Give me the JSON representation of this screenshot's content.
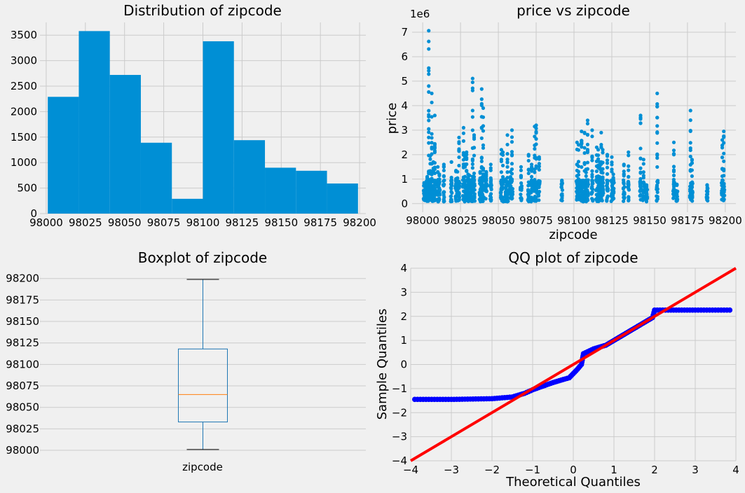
{
  "chart_data": [
    {
      "type": "bar",
      "title": "Distribution of zipcode",
      "xlabel": "",
      "ylabel": "",
      "bin_edges": [
        98001,
        98020.8,
        98040.6,
        98060.4,
        98080.2,
        98100,
        98119.8,
        98139.6,
        98159.4,
        98179.2,
        98199
      ],
      "values": [
        2290,
        3580,
        2720,
        1390,
        290,
        3380,
        1440,
        900,
        840,
        590
      ],
      "xlim": [
        97996,
        98204
      ],
      "ylim": [
        0,
        3750
      ],
      "xticks": [
        98000,
        98025,
        98050,
        98075,
        98100,
        98125,
        98150,
        98175,
        98200
      ],
      "yticks": [
        0,
        500,
        1000,
        1500,
        2000,
        2500,
        3000,
        3500
      ],
      "color": "#008fd5",
      "grid": true
    },
    {
      "type": "scatter",
      "title": "price vs zipcode",
      "xlabel": "zipcode",
      "ylabel": "price",
      "y_scale_label": "1e6",
      "xlim": [
        97993,
        98207
      ],
      "ylim": [
        -0.35,
        7.4
      ],
      "xticks": [
        98000,
        98025,
        98050,
        98075,
        98100,
        98125,
        98150,
        98175,
        98200
      ],
      "yticks": [
        0,
        1,
        2,
        3,
        4,
        5,
        6,
        7
      ],
      "color": "#008fd5",
      "grid": true,
      "zip_groups": [
        {
          "zip": 98001,
          "max": 0.85
        },
        {
          "zip": 98002,
          "max": 0.75
        },
        {
          "zip": 98003,
          "max": 1.1
        },
        {
          "zip": 98004,
          "max": 7.06
        },
        {
          "zip": 98005,
          "max": 1.95
        },
        {
          "zip": 98006,
          "max": 4.5
        },
        {
          "zip": 98007,
          "max": 1.7
        },
        {
          "zip": 98008,
          "max": 3.6
        },
        {
          "zip": 98010,
          "max": 1.5
        },
        {
          "zip": 98011,
          "max": 1.2
        },
        {
          "zip": 98014,
          "max": 1.6
        },
        {
          "zip": 98019,
          "max": 1.7
        },
        {
          "zip": 98022,
          "max": 1.35
        },
        {
          "zip": 98023,
          "max": 1.3
        },
        {
          "zip": 98024,
          "max": 2.7
        },
        {
          "zip": 98027,
          "max": 3.1
        },
        {
          "zip": 98028,
          "max": 1.9
        },
        {
          "zip": 98029,
          "max": 2.1
        },
        {
          "zip": 98030,
          "max": 1.2
        },
        {
          "zip": 98031,
          "max": 1.15
        },
        {
          "zip": 98032,
          "max": 0.95
        },
        {
          "zip": 98033,
          "max": 5.11
        },
        {
          "zip": 98034,
          "max": 2.8
        },
        {
          "zip": 98038,
          "max": 1.3
        },
        {
          "zip": 98039,
          "max": 4.68
        },
        {
          "zip": 98040,
          "max": 3.9
        },
        {
          "zip": 98042,
          "max": 1.3
        },
        {
          "zip": 98045,
          "max": 1.6
        },
        {
          "zip": 98052,
          "max": 2.2
        },
        {
          "zip": 98053,
          "max": 2.1
        },
        {
          "zip": 98055,
          "max": 1.0
        },
        {
          "zip": 98056,
          "max": 2.8
        },
        {
          "zip": 98058,
          "max": 1.3
        },
        {
          "zip": 98059,
          "max": 3.0
        },
        {
          "zip": 98065,
          "max": 1.5
        },
        {
          "zip": 98070,
          "max": 2.0
        },
        {
          "zip": 98072,
          "max": 1.6
        },
        {
          "zip": 98074,
          "max": 3.15
        },
        {
          "zip": 98075,
          "max": 3.2
        },
        {
          "zip": 98077,
          "max": 1.9
        },
        {
          "zip": 98092,
          "max": 0.95
        },
        {
          "zip": 98102,
          "max": 2.5
        },
        {
          "zip": 98103,
          "max": 2.4
        },
        {
          "zip": 98105,
          "max": 2.95
        },
        {
          "zip": 98106,
          "max": 0.95
        },
        {
          "zip": 98107,
          "max": 2.9
        },
        {
          "zip": 98108,
          "max": 1.4
        },
        {
          "zip": 98109,
          "max": 3.4
        },
        {
          "zip": 98112,
          "max": 3.0
        },
        {
          "zip": 98115,
          "max": 2.3
        },
        {
          "zip": 98116,
          "max": 2.2
        },
        {
          "zip": 98117,
          "max": 1.7
        },
        {
          "zip": 98118,
          "max": 2.9
        },
        {
          "zip": 98119,
          "max": 2.2
        },
        {
          "zip": 98122,
          "max": 2.0
        },
        {
          "zip": 98125,
          "max": 1.9
        },
        {
          "zip": 98126,
          "max": 1.2
        },
        {
          "zip": 98133,
          "max": 1.6
        },
        {
          "zip": 98136,
          "max": 2.1
        },
        {
          "zip": 98144,
          "max": 3.6
        },
        {
          "zip": 98146,
          "max": 1.8
        },
        {
          "zip": 98148,
          "max": 0.65
        },
        {
          "zip": 98155,
          "max": 4.5
        },
        {
          "zip": 98166,
          "max": 2.5
        },
        {
          "zip": 98168,
          "max": 0.75
        },
        {
          "zip": 98177,
          "max": 3.8
        },
        {
          "zip": 98178,
          "max": 1.8
        },
        {
          "zip": 98188,
          "max": 0.75
        },
        {
          "zip": 98198,
          "max": 2.6
        },
        {
          "zip": 98199,
          "max": 2.95
        }
      ]
    },
    {
      "type": "box",
      "title": "Boxplot of zipcode",
      "category": "zipcode",
      "whisker_low": 98001,
      "q1": 98033,
      "median": 98065,
      "q3": 98118,
      "whisker_high": 98199,
      "ylim": [
        97987,
        98212
      ],
      "yticks": [
        98000,
        98025,
        98050,
        98075,
        98100,
        98125,
        98150,
        98175,
        98200
      ],
      "box_color": "#1f77b4",
      "median_color": "#ff7f0e",
      "grid": true
    },
    {
      "type": "scatter",
      "title": "QQ plot of zipcode",
      "xlabel": "Theoretical Quantiles",
      "ylabel": "Sample Quantiles",
      "xlim": [
        -4,
        4
      ],
      "ylim": [
        -4,
        4
      ],
      "xticks": [
        -4,
        -3,
        -2,
        -1,
        0,
        1,
        2,
        3,
        4
      ],
      "yticks": [
        -4,
        -3,
        -2,
        -1,
        0,
        1,
        2,
        3,
        4
      ],
      "point_color": "#0000ff",
      "line_color": "#ff0000",
      "reference_line": {
        "x": [
          -4,
          4
        ],
        "y": [
          -4,
          4
        ]
      },
      "curve": [
        {
          "x": -3.9,
          "y": -1.45
        },
        {
          "x": -3.0,
          "y": -1.45
        },
        {
          "x": -2.0,
          "y": -1.42
        },
        {
          "x": -1.5,
          "y": -1.35
        },
        {
          "x": -1.2,
          "y": -1.2
        },
        {
          "x": -1.0,
          "y": -1.05
        },
        {
          "x": -0.5,
          "y": -0.75
        },
        {
          "x": -0.1,
          "y": -0.55
        },
        {
          "x": 0.1,
          "y": -0.2
        },
        {
          "x": 0.2,
          "y": 0.0
        },
        {
          "x": 0.25,
          "y": 0.45
        },
        {
          "x": 0.5,
          "y": 0.65
        },
        {
          "x": 0.8,
          "y": 0.8
        },
        {
          "x": 1.0,
          "y": 1.0
        },
        {
          "x": 1.5,
          "y": 1.5
        },
        {
          "x": 1.95,
          "y": 1.95
        },
        {
          "x": 2.0,
          "y": 2.26
        },
        {
          "x": 3.0,
          "y": 2.26
        },
        {
          "x": 3.85,
          "y": 2.26
        }
      ],
      "grid": true
    }
  ]
}
